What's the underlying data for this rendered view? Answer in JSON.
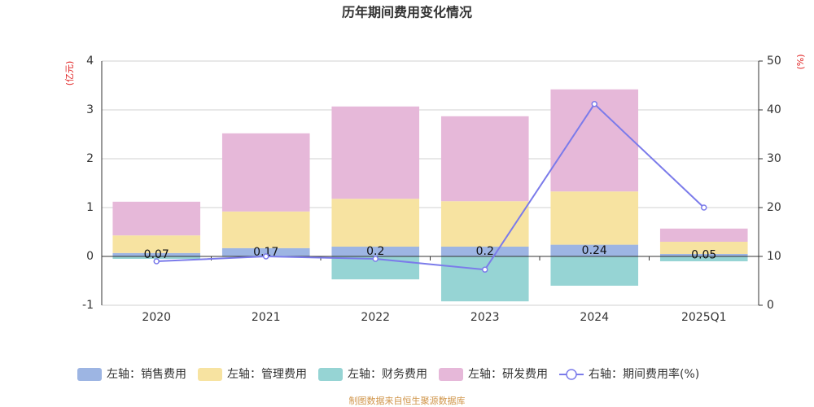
{
  "chart_data": {
    "type": "bar-line",
    "title": "历年期间费用变化情况",
    "y_label": "(亿元)",
    "y2_label": "(%)",
    "source": "制图数据来自恒生聚源数据库",
    "categories": [
      "2020",
      "2021",
      "2022",
      "2023",
      "2024",
      "2025Q1"
    ],
    "ylim": [
      -1,
      4
    ],
    "yticks": [
      -1,
      0,
      1,
      2,
      3,
      4
    ],
    "y2lim": [
      0,
      50
    ],
    "y2ticks": [
      0,
      10,
      20,
      30,
      40,
      50
    ],
    "grid": true,
    "legend": "bottom",
    "series": [
      {
        "name": "左轴：销售费用",
        "type": "bar",
        "color": "#9db5e3",
        "values": [
          0.07,
          0.17,
          0.2,
          0.2,
          0.24,
          0.05
        ],
        "labels": true
      },
      {
        "name": "左轴：管理费用",
        "type": "bar",
        "color": "#f7e3a1",
        "values": [
          0.36,
          0.75,
          0.98,
          0.93,
          1.09,
          0.25
        ]
      },
      {
        "name": "左轴：财务费用",
        "type": "bar",
        "color": "#96d4d4",
        "values": [
          -0.05,
          -0.01,
          -0.47,
          -0.92,
          -0.6,
          -0.1
        ]
      },
      {
        "name": "左轴：研发费用",
        "type": "bar",
        "color": "#e6b8d9",
        "values": [
          0.69,
          1.6,
          1.89,
          1.74,
          2.09,
          0.27
        ]
      },
      {
        "name": "右轴：期间费用率(%)",
        "type": "line",
        "axis": "y2",
        "color": "#7b7bea",
        "values": [
          9,
          10,
          9.5,
          7.3,
          41.2,
          20
        ]
      }
    ]
  }
}
